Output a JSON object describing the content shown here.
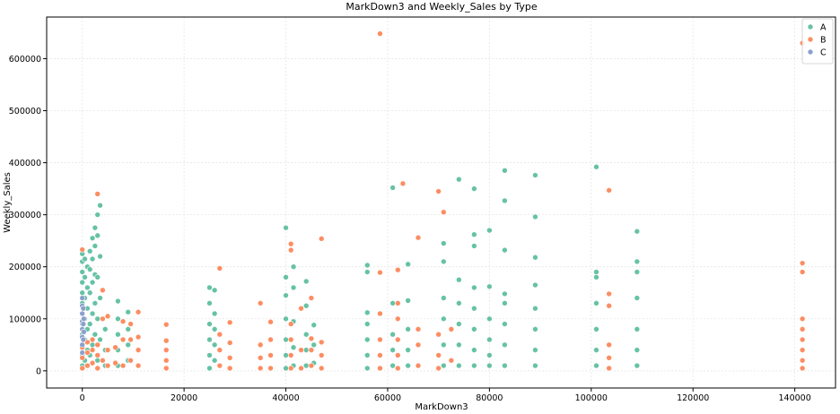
{
  "chart_data": {
    "type": "scatter",
    "title": "MarkDown3 and Weekly_Sales by Type",
    "xlabel": "MarkDown3",
    "ylabel": "Weekly_Sales",
    "xlim": [
      -7000,
      148000
    ],
    "ylim": [
      -33000,
      680000
    ],
    "xticks": [
      0,
      20000,
      40000,
      60000,
      80000,
      100000,
      120000,
      140000
    ],
    "yticks": [
      0,
      100000,
      200000,
      300000,
      400000,
      500000,
      600000
    ],
    "grid": true,
    "legend_position": "top-right",
    "series": [
      {
        "name": "A",
        "color": "#66c2a5",
        "points": [
          [
            0,
            10000
          ],
          [
            0,
            30000
          ],
          [
            0,
            50000
          ],
          [
            0,
            70000
          ],
          [
            0,
            90000
          ],
          [
            0,
            110000
          ],
          [
            0,
            130000
          ],
          [
            0,
            150000
          ],
          [
            0,
            170000
          ],
          [
            0,
            190000
          ],
          [
            0,
            210000
          ],
          [
            0,
            225000
          ],
          [
            500,
            20000
          ],
          [
            500,
            60000
          ],
          [
            500,
            100000
          ],
          [
            500,
            140000
          ],
          [
            500,
            180000
          ],
          [
            500,
            215000
          ],
          [
            1000,
            40000
          ],
          [
            1000,
            80000
          ],
          [
            1000,
            120000
          ],
          [
            1000,
            160000
          ],
          [
            1000,
            200000
          ],
          [
            1500,
            30000
          ],
          [
            1500,
            90000
          ],
          [
            1500,
            150000
          ],
          [
            1500,
            195000
          ],
          [
            1500,
            230000
          ],
          [
            2000,
            50000
          ],
          [
            2000,
            110000
          ],
          [
            2000,
            170000
          ],
          [
            2000,
            215000
          ],
          [
            2000,
            255000
          ],
          [
            2500,
            70000
          ],
          [
            2500,
            130000
          ],
          [
            2500,
            185000
          ],
          [
            2500,
            240000
          ],
          [
            2500,
            275000
          ],
          [
            3000,
            20000
          ],
          [
            3000,
            100000
          ],
          [
            3000,
            180000
          ],
          [
            3000,
            260000
          ],
          [
            3000,
            300000
          ],
          [
            3500,
            60000
          ],
          [
            3500,
            140000
          ],
          [
            3500,
            220000
          ],
          [
            3500,
            318000
          ],
          [
            4500,
            10000
          ],
          [
            4500,
            40000
          ],
          [
            4500,
            80000
          ],
          [
            7000,
            10000
          ],
          [
            7000,
            40000
          ],
          [
            7000,
            70000
          ],
          [
            7000,
            100000
          ],
          [
            7000,
            134000
          ],
          [
            9000,
            20000
          ],
          [
            9000,
            50000
          ],
          [
            9000,
            80000
          ],
          [
            9000,
            113000
          ],
          [
            25000,
            5000
          ],
          [
            25000,
            30000
          ],
          [
            25000,
            60000
          ],
          [
            25000,
            90000
          ],
          [
            25000,
            130000
          ],
          [
            25000,
            160000
          ],
          [
            26000,
            20000
          ],
          [
            26000,
            50000
          ],
          [
            26000,
            80000
          ],
          [
            26000,
            110000
          ],
          [
            26000,
            155000
          ],
          [
            40000,
            5000
          ],
          [
            40000,
            30000
          ],
          [
            40000,
            60000
          ],
          [
            40000,
            100000
          ],
          [
            40000,
            145000
          ],
          [
            40000,
            180000
          ],
          [
            40000,
            275000
          ],
          [
            41500,
            10000
          ],
          [
            41500,
            45000
          ],
          [
            41500,
            95000
          ],
          [
            41500,
            160000
          ],
          [
            41500,
            200000
          ],
          [
            44000,
            10000
          ],
          [
            44000,
            40000
          ],
          [
            44000,
            70000
          ],
          [
            44000,
            125000
          ],
          [
            44000,
            172000
          ],
          [
            45500,
            15000
          ],
          [
            45500,
            50000
          ],
          [
            45500,
            88000
          ],
          [
            56000,
            5000
          ],
          [
            56000,
            30000
          ],
          [
            56000,
            60000
          ],
          [
            56000,
            90000
          ],
          [
            56000,
            112000
          ],
          [
            56000,
            190000
          ],
          [
            56000,
            203000
          ],
          [
            61000,
            10000
          ],
          [
            61000,
            40000
          ],
          [
            61000,
            70000
          ],
          [
            61000,
            130000
          ],
          [
            61000,
            352000
          ],
          [
            64000,
            10000
          ],
          [
            64000,
            40000
          ],
          [
            64000,
            80000
          ],
          [
            64000,
            135000
          ],
          [
            64000,
            205000
          ],
          [
            71000,
            10000
          ],
          [
            71000,
            50000
          ],
          [
            71000,
            100000
          ],
          [
            71000,
            140000
          ],
          [
            71000,
            210000
          ],
          [
            71000,
            245000
          ],
          [
            74000,
            10000
          ],
          [
            74000,
            50000
          ],
          [
            74000,
            90000
          ],
          [
            74000,
            130000
          ],
          [
            74000,
            175000
          ],
          [
            74000,
            368000
          ],
          [
            77000,
            10000
          ],
          [
            77000,
            40000
          ],
          [
            77000,
            80000
          ],
          [
            77000,
            120000
          ],
          [
            77000,
            160000
          ],
          [
            77000,
            240000
          ],
          [
            77000,
            262000
          ],
          [
            77000,
            350000
          ],
          [
            80000,
            10000
          ],
          [
            80000,
            30000
          ],
          [
            80000,
            60000
          ],
          [
            80000,
            100000
          ],
          [
            80000,
            162000
          ],
          [
            80000,
            270000
          ],
          [
            83000,
            10000
          ],
          [
            83000,
            50000
          ],
          [
            83000,
            90000
          ],
          [
            83000,
            130000
          ],
          [
            83000,
            148000
          ],
          [
            83000,
            232000
          ],
          [
            83000,
            327000
          ],
          [
            83000,
            385000
          ],
          [
            89000,
            10000
          ],
          [
            89000,
            40000
          ],
          [
            89000,
            80000
          ],
          [
            89000,
            120000
          ],
          [
            89000,
            165000
          ],
          [
            89000,
            218000
          ],
          [
            89000,
            296000
          ],
          [
            89000,
            376000
          ],
          [
            101000,
            10000
          ],
          [
            101000,
            40000
          ],
          [
            101000,
            80000
          ],
          [
            101000,
            130000
          ],
          [
            101000,
            180000
          ],
          [
            101000,
            190000
          ],
          [
            101000,
            392000
          ],
          [
            109000,
            10000
          ],
          [
            109000,
            40000
          ],
          [
            109000,
            80000
          ],
          [
            109000,
            140000
          ],
          [
            109000,
            190000
          ],
          [
            109000,
            210000
          ],
          [
            109000,
            268000
          ]
        ]
      },
      {
        "name": "B",
        "color": "#fc8d62",
        "points": [
          [
            0,
            5000
          ],
          [
            0,
            25000
          ],
          [
            0,
            45000
          ],
          [
            0,
            65000
          ],
          [
            0,
            233000
          ],
          [
            1000,
            10000
          ],
          [
            1000,
            35000
          ],
          [
            1000,
            55000
          ],
          [
            2000,
            15000
          ],
          [
            2000,
            40000
          ],
          [
            2000,
            60000
          ],
          [
            3000,
            5000
          ],
          [
            3000,
            30000
          ],
          [
            3000,
            50000
          ],
          [
            3000,
            340000
          ],
          [
            4000,
            20000
          ],
          [
            4000,
            100000
          ],
          [
            4000,
            155000
          ],
          [
            5000,
            10000
          ],
          [
            5000,
            40000
          ],
          [
            5000,
            105000
          ],
          [
            6500,
            15000
          ],
          [
            6500,
            45000
          ],
          [
            8000,
            10000
          ],
          [
            8000,
            60000
          ],
          [
            8000,
            95000
          ],
          [
            9500,
            20000
          ],
          [
            9500,
            60000
          ],
          [
            9500,
            90000
          ],
          [
            11000,
            10000
          ],
          [
            11000,
            40000
          ],
          [
            11000,
            65000
          ],
          [
            11000,
            113000
          ],
          [
            16500,
            5000
          ],
          [
            16500,
            20000
          ],
          [
            16500,
            40000
          ],
          [
            16500,
            58000
          ],
          [
            16500,
            89000
          ],
          [
            27000,
            10000
          ],
          [
            27000,
            40000
          ],
          [
            27000,
            70000
          ],
          [
            27000,
            197000
          ],
          [
            29000,
            5000
          ],
          [
            29000,
            25000
          ],
          [
            29000,
            54000
          ],
          [
            29000,
            93000
          ],
          [
            35000,
            5000
          ],
          [
            35000,
            25000
          ],
          [
            35000,
            50000
          ],
          [
            35000,
            130000
          ],
          [
            37000,
            5000
          ],
          [
            37000,
            30000
          ],
          [
            37000,
            60000
          ],
          [
            37000,
            94000
          ],
          [
            41000,
            5000
          ],
          [
            41000,
            30000
          ],
          [
            41000,
            60000
          ],
          [
            41000,
            90000
          ],
          [
            41000,
            232000
          ],
          [
            41000,
            244000
          ],
          [
            43000,
            5000
          ],
          [
            43000,
            40000
          ],
          [
            43000,
            120000
          ],
          [
            45000,
            10000
          ],
          [
            45000,
            40000
          ],
          [
            45000,
            62000
          ],
          [
            45000,
            140000
          ],
          [
            47000,
            5000
          ],
          [
            47000,
            30000
          ],
          [
            47000,
            55000
          ],
          [
            47000,
            254000
          ],
          [
            58500,
            5000
          ],
          [
            58500,
            30000
          ],
          [
            58500,
            60000
          ],
          [
            58500,
            110000
          ],
          [
            58500,
            189000
          ],
          [
            58500,
            648000
          ],
          [
            62000,
            5000
          ],
          [
            62000,
            30000
          ],
          [
            62000,
            60000
          ],
          [
            62000,
            100000
          ],
          [
            62000,
            130000
          ],
          [
            62000,
            194000
          ],
          [
            63000,
            360000
          ],
          [
            66000,
            10000
          ],
          [
            66000,
            50000
          ],
          [
            66000,
            80000
          ],
          [
            66000,
            256000
          ],
          [
            70000,
            5000
          ],
          [
            70000,
            30000
          ],
          [
            70000,
            70000
          ],
          [
            70000,
            345000
          ],
          [
            71000,
            305000
          ],
          [
            72500,
            20000
          ],
          [
            72500,
            80000
          ],
          [
            103500,
            5000
          ],
          [
            103500,
            25000
          ],
          [
            103500,
            50000
          ],
          [
            103500,
            125000
          ],
          [
            103500,
            148000
          ],
          [
            103500,
            347000
          ],
          [
            141500,
            5000
          ],
          [
            141500,
            20000
          ],
          [
            141500,
            40000
          ],
          [
            141500,
            60000
          ],
          [
            141500,
            80000
          ],
          [
            141500,
            100000
          ],
          [
            141500,
            190000
          ],
          [
            141500,
            207000
          ],
          [
            141500,
            630000
          ]
        ]
      },
      {
        "name": "C",
        "color": "#8da0cb",
        "points": [
          [
            0,
            35000
          ],
          [
            0,
            50000
          ],
          [
            0,
            65000
          ],
          [
            0,
            80000
          ],
          [
            0,
            95000
          ],
          [
            0,
            110000
          ],
          [
            0,
            125000
          ],
          [
            0,
            140000
          ],
          [
            200,
            60000
          ],
          [
            200,
            90000
          ],
          [
            200,
            120000
          ],
          [
            300,
            75000
          ],
          [
            300,
            100000
          ]
        ]
      }
    ]
  }
}
